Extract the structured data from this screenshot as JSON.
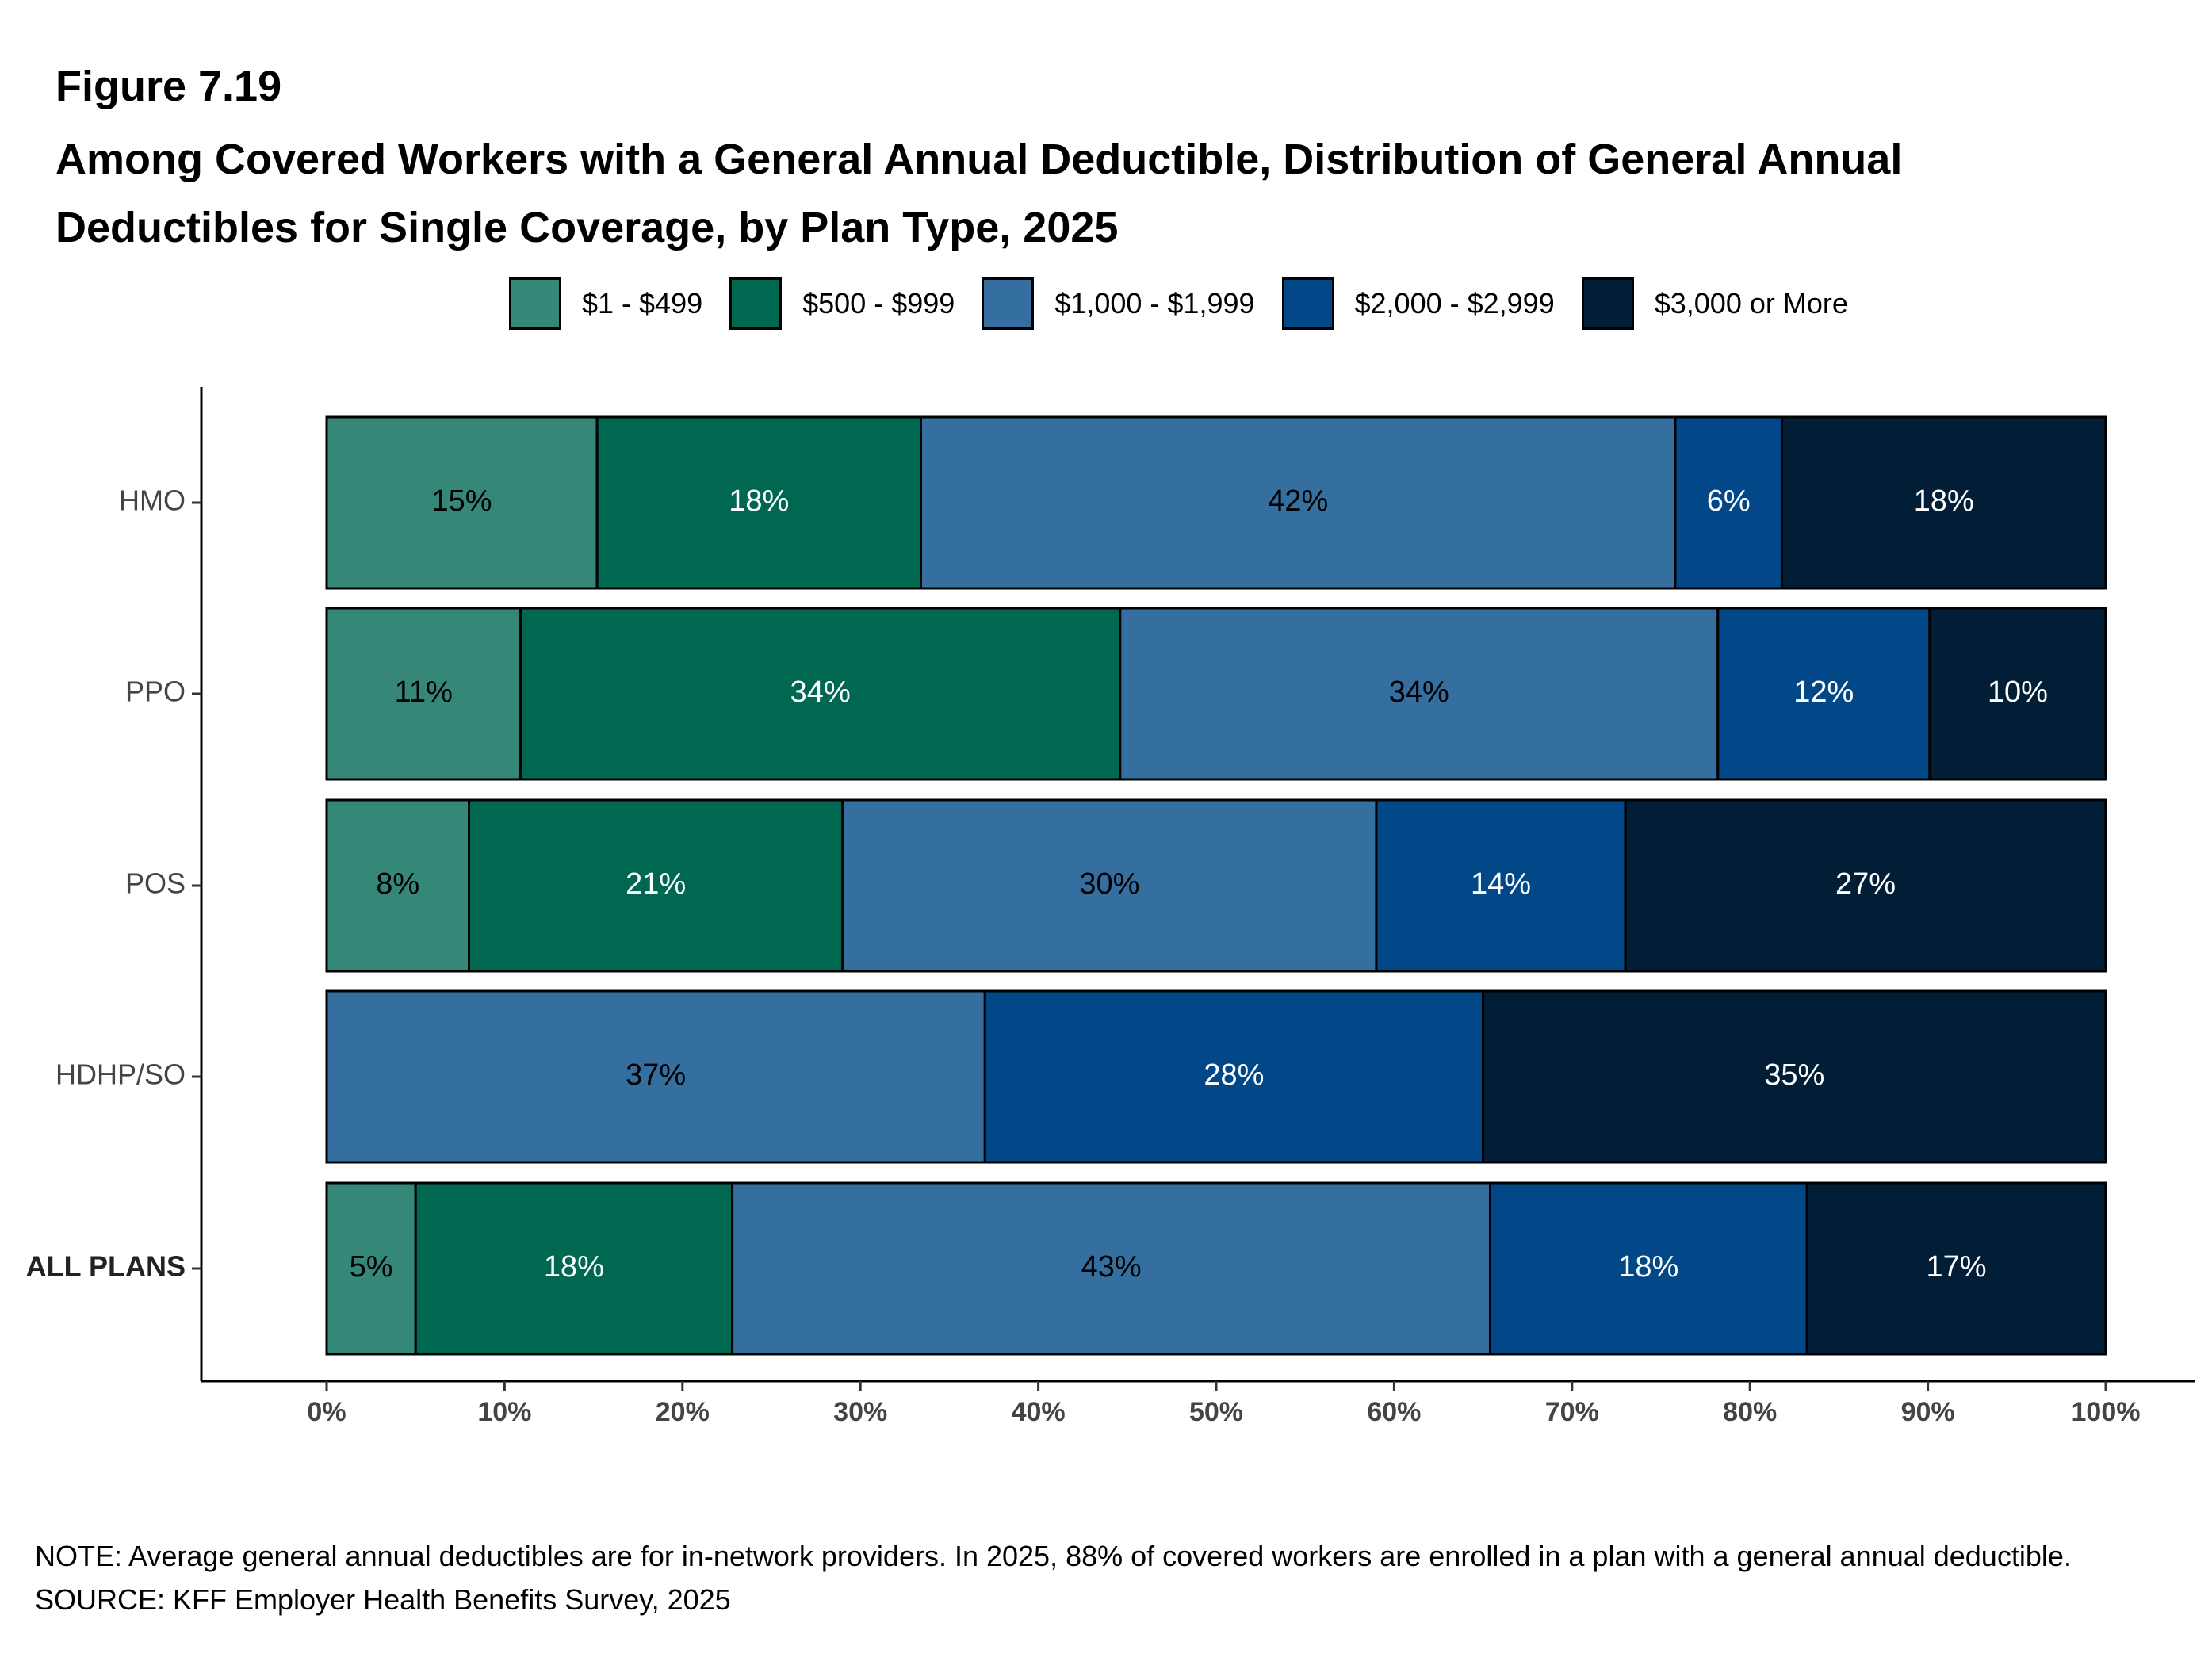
{
  "figure_label": "Figure 7.19",
  "title": "Among Covered Workers with a General Annual Deductible, Distribution of General Annual Deductibles for Single Coverage, by Plan Type, 2025",
  "note": "NOTE: Average general annual deductibles are for in-network providers.  In 2025, 88% of covered workers are enrolled in a plan with a general annual deductible.",
  "source": "SOURCE: KFF Employer Health Benefits Survey, 2025",
  "legend": [
    {
      "label": "$1 - $499",
      "color": "#358778"
    },
    {
      "label": "$500 - $999",
      "color": "#006851"
    },
    {
      "label": "$1,000 - $1,999",
      "color": "#356f9f"
    },
    {
      "label": "$2,000 - $2,999",
      "color": "#024889"
    },
    {
      "label": "$3,000 or More",
      "color": "#011e36"
    }
  ],
  "chart_data": {
    "type": "bar",
    "orientation": "horizontal",
    "stacked": true,
    "categories": [
      "HMO",
      "PPO",
      "POS",
      "HDHP/SO",
      "ALL PLANS"
    ],
    "category_bold": [
      false,
      false,
      false,
      false,
      true
    ],
    "series": [
      {
        "name": "$1 - $499",
        "color": "#358778",
        "label_color": "#000000",
        "values": [
          15.2,
          10.9,
          8.0,
          0,
          5.0
        ],
        "labels": [
          "15%",
          "11%",
          "8%",
          "",
          "5%"
        ]
      },
      {
        "name": "$500 - $999",
        "color": "#006851",
        "label_color": "#ffffff",
        "values": [
          18.2,
          33.7,
          21.0,
          0,
          17.8
        ],
        "labels": [
          "18%",
          "34%",
          "21%",
          "",
          "18%"
        ]
      },
      {
        "name": "$1,000 - $1,999",
        "color": "#356f9f",
        "label_color": "#000000",
        "values": [
          42.4,
          33.6,
          30.0,
          37.0,
          42.6
        ],
        "labels": [
          "42%",
          "34%",
          "30%",
          "37%",
          "43%"
        ]
      },
      {
        "name": "$2,000 - $2,999",
        "color": "#024889",
        "label_color": "#ffffff",
        "values": [
          6.0,
          11.9,
          14.0,
          28.0,
          17.8
        ],
        "labels": [
          "6%",
          "12%",
          "14%",
          "28%",
          "18%"
        ]
      },
      {
        "name": "$3,000 or More",
        "color": "#011e36",
        "label_color": "#ffffff",
        "values": [
          18.2,
          9.9,
          27.0,
          35.0,
          16.8
        ],
        "labels": [
          "18%",
          "10%",
          "27%",
          "35%",
          "17%"
        ]
      }
    ],
    "xlim": [
      0,
      100
    ],
    "xticks": [
      "0%",
      "10%",
      "20%",
      "30%",
      "40%",
      "50%",
      "60%",
      "70%",
      "80%",
      "90%",
      "100%"
    ],
    "grid": false,
    "legend_position": "top"
  }
}
